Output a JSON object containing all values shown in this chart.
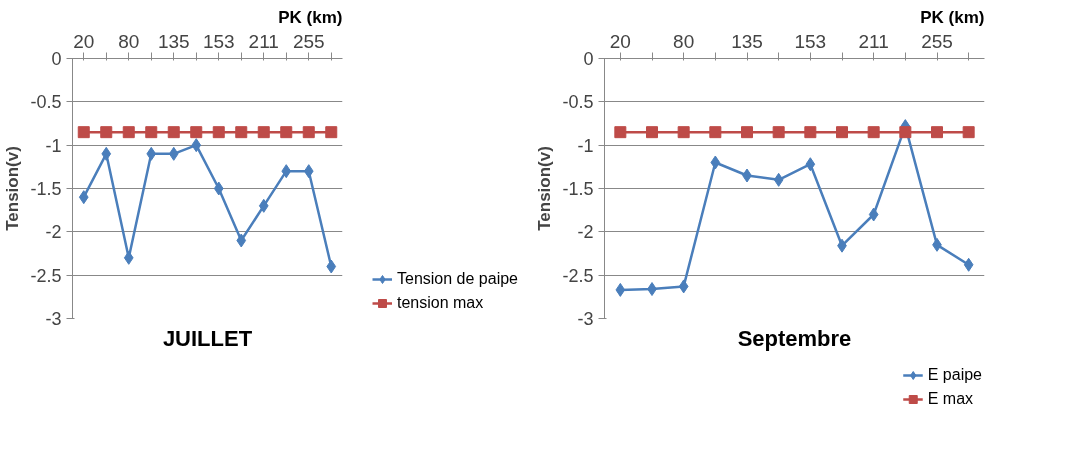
{
  "chart_data": [
    {
      "type": "line",
      "title": "JUILLET",
      "xlabel": "PK (km)",
      "ylabel": "Tension(v)",
      "categories": [
        "20",
        null,
        "80",
        null,
        "135",
        null,
        "153",
        null,
        "211",
        null,
        "255",
        null
      ],
      "series": [
        {
          "name": "Tension de paipe",
          "color": "#4a7ebb",
          "marker": "diamond",
          "values": [
            -1.6,
            -1.1,
            -2.3,
            -1.1,
            -1.1,
            -1.0,
            -1.5,
            -2.1,
            -1.7,
            -1.3,
            -1.3,
            -2.4
          ]
        },
        {
          "name": "tension max",
          "color": "#be4b48",
          "marker": "square",
          "values": [
            -0.85,
            -0.85,
            -0.85,
            -0.85,
            -0.85,
            -0.85,
            -0.85,
            -0.85,
            -0.85,
            -0.85,
            -0.85,
            -0.85
          ]
        }
      ],
      "ylim": [
        -3,
        0
      ],
      "yticks": [
        -3,
        -2.5,
        -2,
        -1.5,
        -1,
        -0.5,
        0
      ],
      "grid": "y",
      "legend": "right"
    },
    {
      "type": "line",
      "title": "Septembre",
      "xlabel": "PK (km)",
      "ylabel": "Tension(v)",
      "categories": [
        "20",
        null,
        "80",
        null,
        "135",
        null,
        "153",
        null,
        "211",
        null,
        "255",
        null
      ],
      "series": [
        {
          "name": "E paipe",
          "color": "#4a7ebb",
          "marker": "diamond",
          "values": [
            -2.67,
            -2.66,
            -2.63,
            -1.2,
            -1.35,
            -1.4,
            -1.22,
            -2.16,
            -1.8,
            -0.78,
            -2.15,
            -2.38
          ]
        },
        {
          "name": "E max",
          "color": "#be4b48",
          "marker": "square",
          "values": [
            -0.85,
            -0.85,
            -0.85,
            -0.85,
            -0.85,
            -0.85,
            -0.85,
            -0.85,
            -0.85,
            -0.85,
            -0.85,
            -0.85
          ]
        }
      ],
      "ylim": [
        -3,
        0
      ],
      "yticks": [
        -3,
        -2.5,
        -2,
        -1.5,
        -1,
        -0.5,
        0
      ],
      "grid": "y",
      "legend": "bottom"
    }
  ]
}
